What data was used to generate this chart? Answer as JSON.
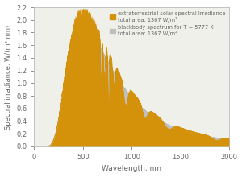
{
  "title": "",
  "xlabel": "Wavelength, nm",
  "ylabel": "Spectral irradiance, W/(m² nm)",
  "xlim": [
    0,
    2000
  ],
  "ylim": [
    0.0,
    2.2
  ],
  "yticks": [
    0.0,
    0.2,
    0.4,
    0.6,
    0.8,
    1.0,
    1.2,
    1.4,
    1.6,
    1.8,
    2.0,
    2.2
  ],
  "xticks": [
    0,
    500,
    1000,
    1500,
    2000
  ],
  "solar_color": "#D4910A",
  "blackbody_color": "#C0C0C0",
  "legend_solar_label1": "extraterrestrial solar spectral irradiance",
  "legend_solar_label2": "total area: 1367 W/m²",
  "legend_bb_label1": "blackbody spectrum for T = 5777 K",
  "legend_bb_label2": "total area: 1367 W/m²",
  "background_color": "#F0F0EB",
  "figsize": [
    3.0,
    2.2
  ],
  "dpi": 100
}
